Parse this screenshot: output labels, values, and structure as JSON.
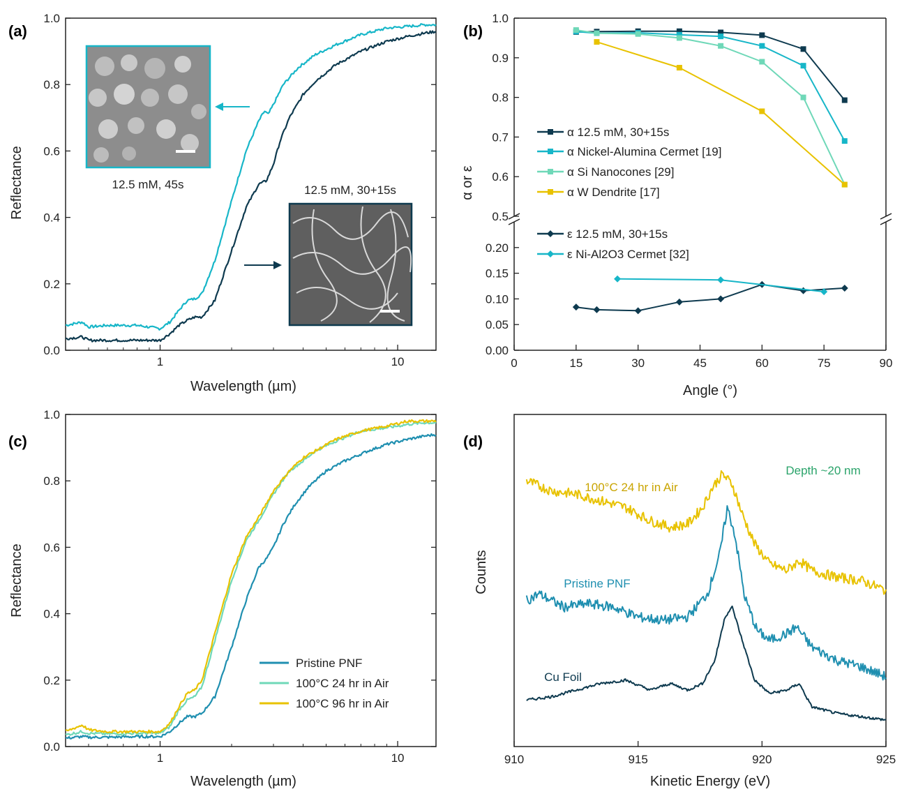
{
  "colors": {
    "dark": "#0e3a4f",
    "teal": "#17b6c8",
    "cyan_blue": "#1f8fb0",
    "mint": "#6fd8b8",
    "gold": "#e8c200",
    "green_text": "#2aa36a"
  },
  "chart_data": [
    {
      "id": "a",
      "panel_label": "(a)",
      "type": "line",
      "xlabel": "Wavelength (µm)",
      "ylabel": "Reflectance",
      "x_scale": "log",
      "xlim": [
        0.4,
        14.5
      ],
      "ylim": [
        0.0,
        1.0
      ],
      "xticks": [
        "1",
        "10"
      ],
      "yticks": [
        "0.0",
        "0.2",
        "0.4",
        "0.6",
        "0.8",
        "1.0"
      ],
      "series": [
        {
          "color_key": "teal",
          "x": [
            0.4,
            0.47,
            0.5,
            0.6,
            0.8,
            1.0,
            1.1,
            1.2,
            1.3,
            1.4,
            1.5,
            1.7,
            2.0,
            2.3,
            2.6,
            2.75,
            2.85,
            3.0,
            3.3,
            3.8,
            4.5,
            5.5,
            7.0,
            9.0,
            11.0,
            13.0,
            14.5
          ],
          "y": [
            0.075,
            0.085,
            0.07,
            0.075,
            0.075,
            0.065,
            0.085,
            0.12,
            0.15,
            0.155,
            0.17,
            0.27,
            0.45,
            0.6,
            0.69,
            0.72,
            0.71,
            0.74,
            0.8,
            0.85,
            0.89,
            0.92,
            0.95,
            0.97,
            0.975,
            0.98,
            0.98
          ]
        },
        {
          "color_key": "dark",
          "x": [
            0.4,
            0.47,
            0.5,
            0.6,
            0.8,
            1.0,
            1.1,
            1.2,
            1.3,
            1.4,
            1.5,
            1.7,
            2.0,
            2.3,
            2.6,
            2.8,
            3.0,
            3.2,
            3.5,
            4.0,
            4.5,
            5.5,
            7.0,
            9.0,
            11.0,
            13.0,
            14.5
          ],
          "y": [
            0.035,
            0.04,
            0.03,
            0.03,
            0.03,
            0.03,
            0.05,
            0.075,
            0.09,
            0.1,
            0.1,
            0.15,
            0.3,
            0.43,
            0.5,
            0.51,
            0.56,
            0.63,
            0.7,
            0.77,
            0.81,
            0.86,
            0.9,
            0.93,
            0.945,
            0.955,
            0.96
          ]
        }
      ],
      "annotations": [
        "12.5 mM, 45s",
        "12.5 mM, 30+15s"
      ]
    },
    {
      "id": "b",
      "panel_label": "(b)",
      "type": "line",
      "xlabel": "Angle (°)",
      "ylabel": "α or ε",
      "xlim": [
        0,
        90
      ],
      "xticks": [
        "0",
        "15",
        "30",
        "45",
        "60",
        "75",
        "90"
      ],
      "upper_ylim": [
        0.5,
        1.0
      ],
      "upper_yticks": [
        "0.5",
        "0.6",
        "0.7",
        "0.8",
        "0.9",
        "1.0"
      ],
      "lower_ylim": [
        0.0,
        0.25
      ],
      "lower_yticks": [
        "0.00",
        "0.05",
        "0.10",
        "0.15",
        "0.20"
      ],
      "series": [
        {
          "name": "α 12.5 mM, 30+15s",
          "color_key": "dark",
          "marker": "square",
          "axis": "upper",
          "x": [
            15,
            20,
            30,
            40,
            50,
            60,
            70,
            80
          ],
          "y": [
            0.965,
            0.966,
            0.967,
            0.967,
            0.964,
            0.957,
            0.922,
            0.793
          ]
        },
        {
          "name": "α Nickel-Alumina Cermet [19]",
          "color_key": "teal",
          "marker": "square",
          "axis": "upper",
          "x": [
            15,
            20,
            30,
            40,
            50,
            60,
            70,
            80
          ],
          "y": [
            0.966,
            0.962,
            0.963,
            0.958,
            0.954,
            0.93,
            0.88,
            0.69
          ]
        },
        {
          "name": "α Si Nanocones [29]",
          "color_key": "mint",
          "marker": "square",
          "axis": "upper",
          "x": [
            15,
            20,
            30,
            40,
            50,
            60,
            70,
            80
          ],
          "y": [
            0.97,
            0.962,
            0.96,
            0.95,
            0.93,
            0.89,
            0.8,
            0.58
          ]
        },
        {
          "name": "α W Dendrite [17]",
          "color_key": "gold",
          "marker": "square",
          "axis": "upper",
          "x": [
            20,
            40,
            60,
            80
          ],
          "y": [
            0.94,
            0.875,
            0.765,
            0.58
          ]
        },
        {
          "name": "ε 12.5 mM, 30+15s",
          "color_key": "dark",
          "marker": "diamond",
          "axis": "lower",
          "x": [
            15,
            20,
            30,
            40,
            50,
            60,
            70,
            80
          ],
          "y": [
            0.084,
            0.079,
            0.077,
            0.094,
            0.1,
            0.128,
            0.116,
            0.121
          ]
        },
        {
          "name": "ε Ni-Al2O3 Cermet [32]",
          "color_key": "teal",
          "marker": "diamond",
          "axis": "lower",
          "x": [
            25,
            50,
            75
          ],
          "y": [
            0.139,
            0.137,
            0.114
          ]
        }
      ]
    },
    {
      "id": "c",
      "panel_label": "(c)",
      "type": "line",
      "xlabel": "Wavelength (µm)",
      "ylabel": "Reflectance",
      "x_scale": "log",
      "xlim": [
        0.4,
        14.5
      ],
      "ylim": [
        0.0,
        1.0
      ],
      "xticks": [
        "1",
        "10"
      ],
      "yticks": [
        "0.0",
        "0.2",
        "0.4",
        "0.6",
        "0.8",
        "1.0"
      ],
      "series": [
        {
          "name": "Pristine PNF",
          "color_key": "cyan_blue",
          "x": [
            0.4,
            0.47,
            0.5,
            0.6,
            0.8,
            1.0,
            1.1,
            1.2,
            1.3,
            1.4,
            1.5,
            1.7,
            2.0,
            2.3,
            2.6,
            2.8,
            3.0,
            3.3,
            3.7,
            4.2,
            5.0,
            6.0,
            7.5,
            9.0,
            11.0,
            13.0,
            14.5
          ],
          "y": [
            0.025,
            0.03,
            0.028,
            0.028,
            0.03,
            0.03,
            0.045,
            0.07,
            0.09,
            0.09,
            0.1,
            0.15,
            0.3,
            0.44,
            0.54,
            0.565,
            0.6,
            0.67,
            0.73,
            0.78,
            0.83,
            0.86,
            0.89,
            0.91,
            0.925,
            0.935,
            0.94
          ]
        },
        {
          "name": "100°C 24 hr in Air",
          "color_key": "mint",
          "x": [
            0.4,
            0.47,
            0.5,
            0.6,
            0.8,
            1.0,
            1.1,
            1.2,
            1.3,
            1.4,
            1.5,
            1.7,
            2.0,
            2.3,
            2.6,
            3.0,
            3.5,
            4.0,
            4.5,
            5.5,
            7.0,
            9.0,
            11.0,
            13.0,
            14.5
          ],
          "y": [
            0.035,
            0.045,
            0.04,
            0.038,
            0.04,
            0.04,
            0.06,
            0.11,
            0.14,
            0.15,
            0.18,
            0.32,
            0.5,
            0.62,
            0.68,
            0.76,
            0.83,
            0.86,
            0.89,
            0.92,
            0.95,
            0.96,
            0.97,
            0.975,
            0.975
          ]
        },
        {
          "name": "100°C 96 hr in Air",
          "color_key": "gold",
          "x": [
            0.4,
            0.47,
            0.5,
            0.6,
            0.8,
            1.0,
            1.1,
            1.2,
            1.3,
            1.4,
            1.5,
            1.7,
            2.0,
            2.3,
            2.6,
            3.0,
            3.5,
            4.0,
            4.5,
            5.5,
            7.0,
            9.0,
            11.0,
            13.0,
            14.5
          ],
          "y": [
            0.045,
            0.065,
            0.05,
            0.045,
            0.045,
            0.045,
            0.07,
            0.12,
            0.16,
            0.17,
            0.2,
            0.34,
            0.52,
            0.63,
            0.69,
            0.77,
            0.83,
            0.87,
            0.89,
            0.925,
            0.95,
            0.965,
            0.98,
            0.98,
            0.98
          ]
        }
      ]
    },
    {
      "id": "d",
      "panel_label": "(d)",
      "type": "line",
      "xlabel": "Kinetic Energy (eV)",
      "ylabel": "Counts",
      "xlim": [
        910,
        925
      ],
      "xticks": [
        "910",
        "915",
        "920",
        "925"
      ],
      "ylim": [
        0,
        1
      ],
      "annotation": "Depth ~20 nm",
      "series": [
        {
          "name": "100°C 24 hr in Air",
          "color_key": "gold",
          "x": [
            910.5,
            911.5,
            912.5,
            913.5,
            914.5,
            915.5,
            916.3,
            917.0,
            917.6,
            918.0,
            918.4,
            918.8,
            919.2,
            919.7,
            920.3,
            921.0,
            921.5,
            922.0,
            923.0,
            924.0,
            925.0
          ],
          "y": [
            0.8,
            0.77,
            0.76,
            0.74,
            0.72,
            0.68,
            0.66,
            0.67,
            0.72,
            0.78,
            0.82,
            0.79,
            0.7,
            0.61,
            0.55,
            0.53,
            0.56,
            0.53,
            0.51,
            0.5,
            0.47
          ]
        },
        {
          "name": "Pristine PNF",
          "color_key": "cyan_blue",
          "x": [
            910.5,
            911.0,
            912.0,
            913.0,
            914.0,
            915.0,
            916.0,
            917.0,
            917.8,
            918.3,
            918.6,
            918.9,
            919.3,
            919.8,
            920.3,
            921.0,
            921.4,
            922.0,
            923.0,
            924.0,
            925.0
          ],
          "y": [
            0.44,
            0.46,
            0.42,
            0.43,
            0.42,
            0.39,
            0.38,
            0.39,
            0.46,
            0.58,
            0.72,
            0.64,
            0.45,
            0.35,
            0.32,
            0.34,
            0.36,
            0.3,
            0.26,
            0.24,
            0.21
          ]
        },
        {
          "name": "Cu Foil",
          "color_key": "dark",
          "x": [
            910.5,
            911.5,
            912.5,
            913.5,
            914.5,
            915.5,
            916.3,
            917.0,
            917.6,
            918.1,
            918.5,
            918.8,
            919.2,
            919.7,
            920.3,
            921.0,
            921.5,
            922.0,
            923.0,
            924.0,
            925.0
          ],
          "y": [
            0.14,
            0.15,
            0.17,
            0.19,
            0.2,
            0.17,
            0.19,
            0.17,
            0.19,
            0.26,
            0.39,
            0.42,
            0.32,
            0.2,
            0.16,
            0.17,
            0.19,
            0.12,
            0.1,
            0.09,
            0.08
          ]
        }
      ]
    }
  ]
}
